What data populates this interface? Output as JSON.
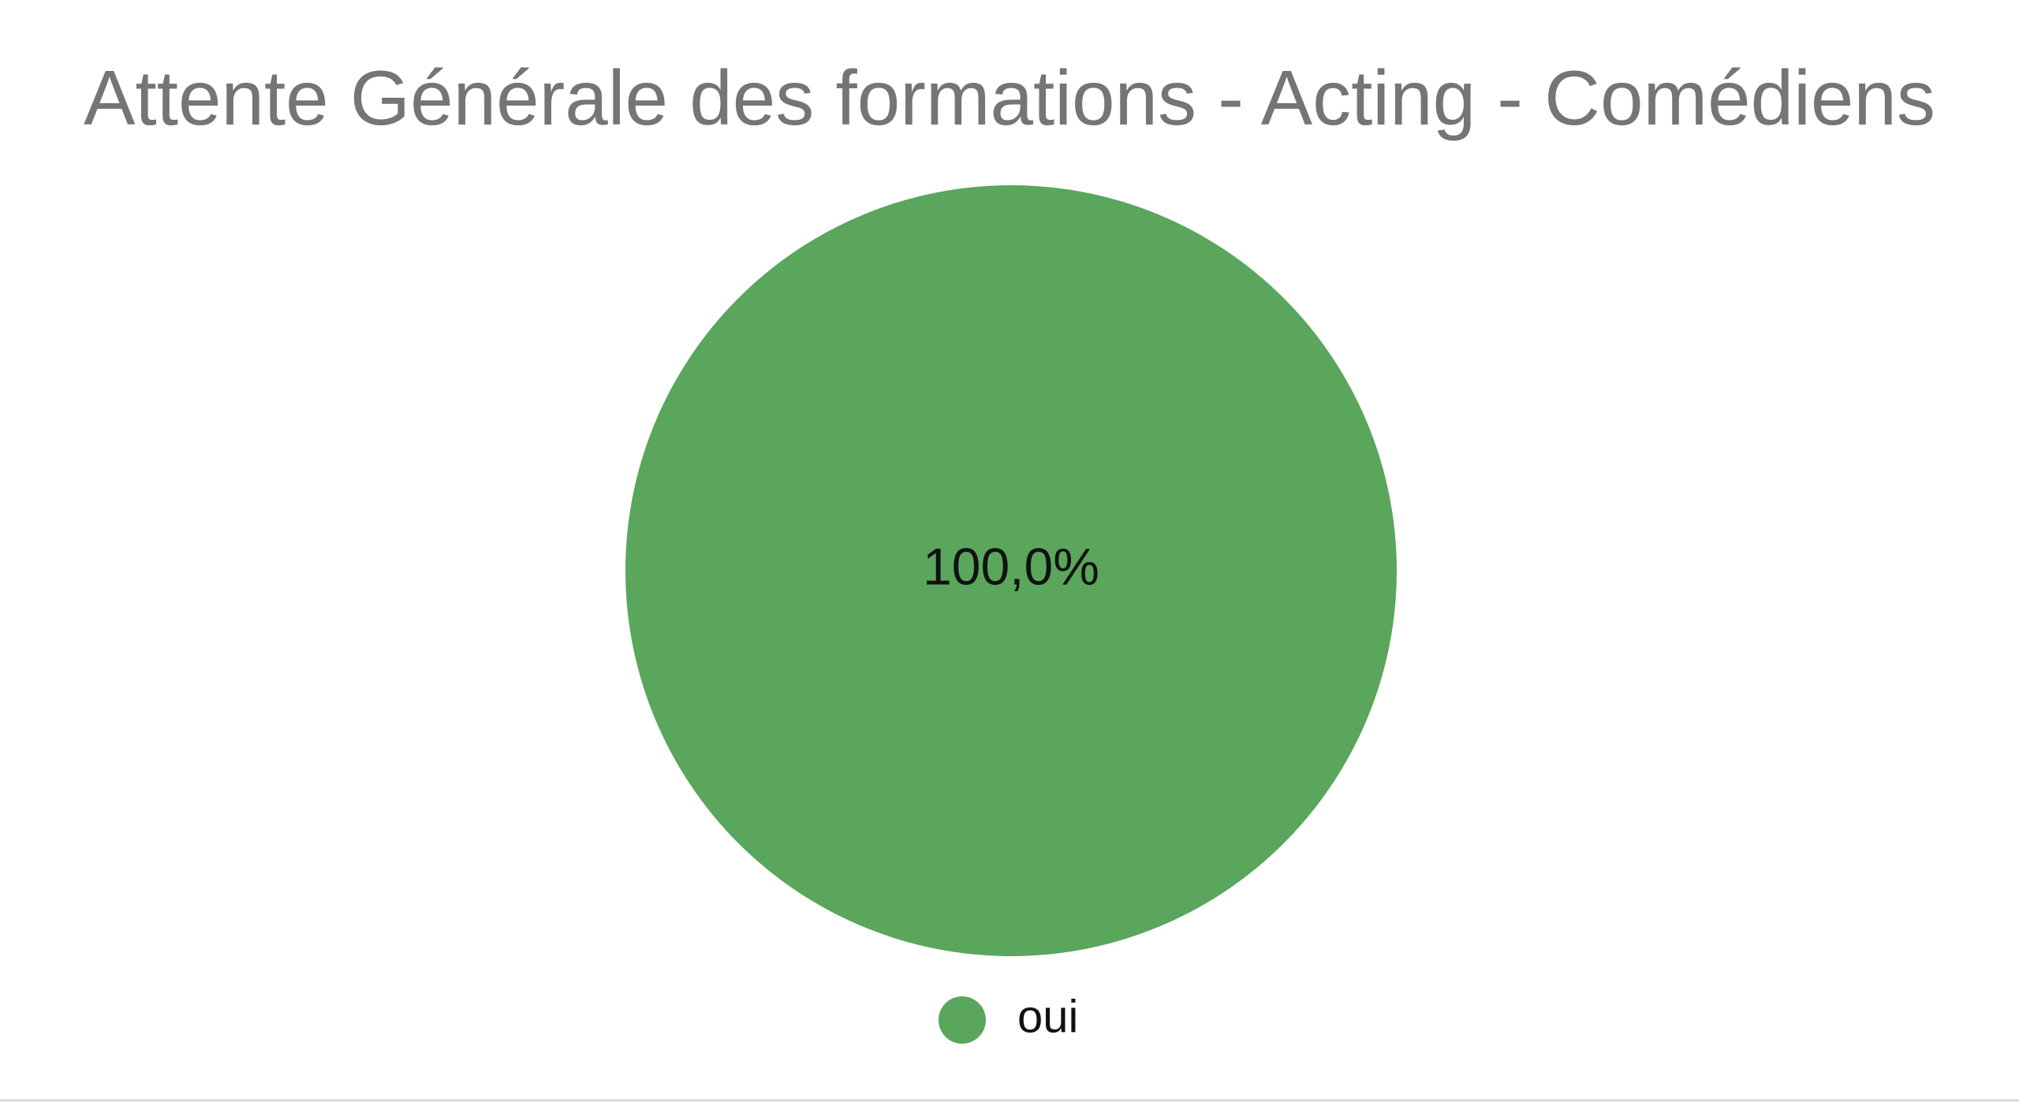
{
  "chart_data": {
    "type": "pie",
    "title": "Attente Générale des formations - Acting - Comédiens",
    "categories": [
      "oui"
    ],
    "values": [
      100
    ],
    "value_labels": [
      "100,0%"
    ],
    "colors": [
      "#5aa65c"
    ],
    "legend": "bottom"
  }
}
